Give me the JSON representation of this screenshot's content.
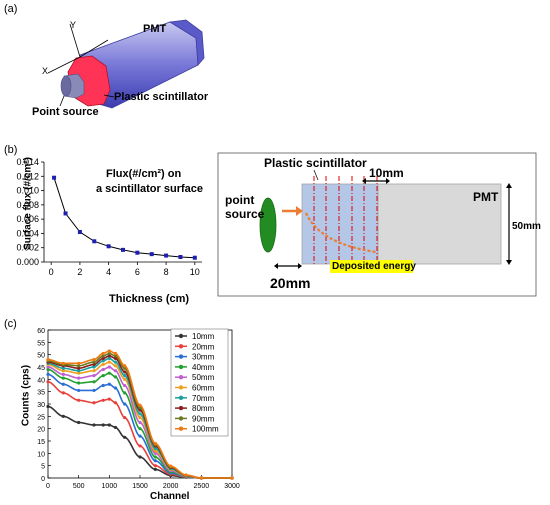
{
  "panels": {
    "a": "(a)",
    "b": "(b)",
    "c": "(c)"
  },
  "geometry_3d": {
    "axis_y": "Y",
    "axis_x": "X",
    "pmt_label": "PMT",
    "scintillator_label": "Plastic scintillator",
    "source_label": "Point source"
  },
  "flux_chart": {
    "chart_data": {
      "type": "line",
      "xlabel": "Thickness (cm)",
      "ylabel": "Surface flux (#/cm²)",
      "annotation_line1": "Flux(#/cm²) on",
      "annotation_line2": "a scintillator surface",
      "xlim": [
        -0.5,
        10.5
      ],
      "ylim": [
        0,
        0.014
      ],
      "xticks": [
        "0",
        "2",
        "4",
        "6",
        "8",
        "10"
      ],
      "yticks": [
        "0.000",
        "0.002",
        "0.004",
        "0.006",
        "0.008",
        "0.010",
        "0.012",
        "0.014"
      ],
      "x": [
        0.2,
        1,
        2,
        3,
        4,
        5,
        6,
        7,
        8,
        9,
        10
      ],
      "y": [
        0.0118,
        0.0068,
        0.0042,
        0.0029,
        0.0022,
        0.0017,
        0.0013,
        0.0011,
        0.0009,
        0.0007,
        0.0006
      ],
      "color": "#1f1fb4"
    }
  },
  "setup_diagram": {
    "scintillator_label": "Plastic scintillator",
    "thickness_label": "10mm",
    "source_label_line1": "point",
    "source_label_line2": "source",
    "pmt_label": "PMT",
    "height_label": "50mm",
    "distance_label": "20mm",
    "deposited_label": "Deposited energy",
    "highlight_color": "#ffff00",
    "arrow_color": "#ed7d31"
  },
  "spectrum_chart": {
    "chart_data": {
      "type": "line",
      "xlabel": "Channel",
      "ylabel": "Counts (cps)",
      "xlim": [
        0,
        3000
      ],
      "ylim": [
        0,
        60
      ],
      "xticks": [
        "0",
        "500",
        "1000",
        "1500",
        "2000",
        "2500",
        "3000"
      ],
      "yticks": [
        "0",
        "5",
        "10",
        "15",
        "20",
        "25",
        "30",
        "35",
        "40",
        "45",
        "50",
        "55",
        "60"
      ],
      "x": [
        0,
        250,
        500,
        750,
        900,
        1000,
        1100,
        1250,
        1500,
        1750,
        2000,
        2250,
        2500,
        3000
      ],
      "series": [
        {
          "name": "10mm",
          "color": "#333333",
          "values": [
            29,
            25,
            22.5,
            21.5,
            21.5,
            21.5,
            20.5,
            16.5,
            8.5,
            3.5,
            1,
            0.3,
            0,
            0
          ]
        },
        {
          "name": "20mm",
          "color": "#e8403a",
          "values": [
            39,
            34.5,
            31.5,
            30.5,
            31.5,
            32,
            30.5,
            24.5,
            13,
            5,
            1.5,
            0.4,
            0,
            0
          ]
        },
        {
          "name": "30mm",
          "color": "#2a6fd6",
          "values": [
            42,
            38,
            35.5,
            35.5,
            37.5,
            38,
            36.5,
            30,
            17,
            7,
            2,
            0.5,
            0,
            0
          ]
        },
        {
          "name": "40mm",
          "color": "#22a030",
          "values": [
            44,
            40.5,
            38.5,
            39,
            41.5,
            42.5,
            41,
            34.5,
            20,
            8.5,
            2.5,
            0.6,
            0,
            0
          ]
        },
        {
          "name": "50mm",
          "color": "#c060d0",
          "values": [
            45,
            42,
            40.5,
            41.5,
            44,
            45,
            43.5,
            37.5,
            22.5,
            10,
            3,
            0.7,
            0,
            0
          ]
        },
        {
          "name": "60mm",
          "color": "#f0a020",
          "values": [
            46,
            43.5,
            42.5,
            43.5,
            46,
            47,
            45.5,
            40,
            24.5,
            11,
            3.5,
            0.8,
            0,
            0
          ]
        },
        {
          "name": "70mm",
          "color": "#1aa0a0",
          "values": [
            46.5,
            44.5,
            43.5,
            45,
            47.5,
            48.5,
            47,
            41.5,
            26,
            12,
            3.8,
            0.9,
            0,
            0
          ]
        },
        {
          "name": "80mm",
          "color": "#8a2020",
          "values": [
            47,
            45.5,
            44.5,
            46,
            48.5,
            49.5,
            48.5,
            43,
            27.5,
            13,
            4.2,
            1,
            0,
            0
          ]
        },
        {
          "name": "90mm",
          "color": "#6a7a20",
          "values": [
            47.5,
            46,
            45.5,
            47,
            49.5,
            50.5,
            49.5,
            44.5,
            28.5,
            13.5,
            4.5,
            1.1,
            0,
            0
          ]
        },
        {
          "name": "100mm",
          "color": "#f07810",
          "values": [
            48,
            46.5,
            46.5,
            48,
            50.5,
            51.5,
            50.5,
            45.5,
            29.5,
            14,
            4.8,
            1.2,
            0,
            0
          ]
        }
      ]
    }
  }
}
